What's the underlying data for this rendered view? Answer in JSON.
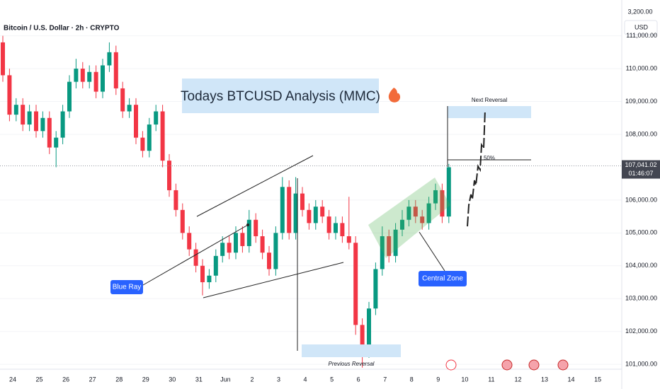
{
  "header": {
    "symbol": "Bitcoin / U.S. Dollar · 2h · CRYPTO",
    "currency": "USD",
    "top_label": "3,200.00"
  },
  "annotations": {
    "title": "Todays BTCUSD Analysis (MMC)",
    "blue_ray": "Blue Ray",
    "central_zone": "Central Zone",
    "next_reversal": "Next Reversal",
    "previous_reversal": "Previous Reversal",
    "fifty": "50%"
  },
  "chart_data": {
    "type": "candlestick",
    "up_color": "#089981",
    "down_color": "#f23645",
    "ylim": [
      100250,
      112090
    ],
    "yticks": [
      {
        "value": 101000,
        "label": "101,000.00"
      },
      {
        "value": 102000,
        "label": "102,000.00"
      },
      {
        "value": 103000,
        "label": "103,000.00"
      },
      {
        "value": 104000,
        "label": "104,000.00"
      },
      {
        "value": 105000,
        "label": "105,000.00"
      },
      {
        "value": 106000,
        "label": "106,000.00"
      },
      {
        "value": 108000,
        "label": "108,000.00"
      },
      {
        "value": 109000,
        "label": "109,000.00"
      },
      {
        "value": 110000,
        "label": "110,000.00"
      },
      {
        "value": 111000,
        "label": "111,000.00"
      }
    ],
    "last_price": {
      "value": 107041.02,
      "label": "107,041.02",
      "countdown": "01:46:07"
    },
    "categories": [
      "24",
      "25",
      "26",
      "27",
      "28",
      "29",
      "30",
      "31",
      "Jun",
      "2",
      "3",
      "4",
      "5",
      "6",
      "7",
      "8",
      "9",
      "10",
      "11",
      "12",
      "13",
      "14",
      "15"
    ],
    "candles": [
      {
        "o": 110800,
        "h": 111000,
        "l": 109600,
        "c": 109800
      },
      {
        "o": 109800,
        "h": 110000,
        "l": 108400,
        "c": 108600
      },
      {
        "o": 108600,
        "h": 109100,
        "l": 108400,
        "c": 108900
      },
      {
        "o": 108900,
        "h": 109100,
        "l": 108100,
        "c": 108300
      },
      {
        "o": 108300,
        "h": 108900,
        "l": 108100,
        "c": 108700
      },
      {
        "o": 108700,
        "h": 108900,
        "l": 107900,
        "c": 108100
      },
      {
        "o": 108100,
        "h": 108700,
        "l": 107900,
        "c": 108500
      },
      {
        "o": 108500,
        "h": 108700,
        "l": 107400,
        "c": 107600
      },
      {
        "o": 107600,
        "h": 108100,
        "l": 107000,
        "c": 107900
      },
      {
        "o": 107900,
        "h": 108900,
        "l": 107700,
        "c": 108700
      },
      {
        "o": 108700,
        "h": 109800,
        "l": 108500,
        "c": 109600
      },
      {
        "o": 109600,
        "h": 110300,
        "l": 109400,
        "c": 110000
      },
      {
        "o": 110000,
        "h": 110200,
        "l": 109400,
        "c": 109600
      },
      {
        "o": 109600,
        "h": 110100,
        "l": 109400,
        "c": 109900
      },
      {
        "o": 109900,
        "h": 110100,
        "l": 109100,
        "c": 109300
      },
      {
        "o": 109300,
        "h": 110300,
        "l": 109100,
        "c": 110100
      },
      {
        "o": 110100,
        "h": 110800,
        "l": 109900,
        "c": 110500
      },
      {
        "o": 110500,
        "h": 110700,
        "l": 109200,
        "c": 109400
      },
      {
        "o": 109400,
        "h": 109600,
        "l": 108500,
        "c": 108700
      },
      {
        "o": 108700,
        "h": 109100,
        "l": 108500,
        "c": 108900
      },
      {
        "o": 108900,
        "h": 109100,
        "l": 107700,
        "c": 107900
      },
      {
        "o": 107900,
        "h": 108100,
        "l": 107300,
        "c": 107500
      },
      {
        "o": 107500,
        "h": 108500,
        "l": 107300,
        "c": 108300
      },
      {
        "o": 108300,
        "h": 108900,
        "l": 108100,
        "c": 108700
      },
      {
        "o": 108700,
        "h": 108900,
        "l": 107000,
        "c": 107200
      },
      {
        "o": 107200,
        "h": 107400,
        "l": 106100,
        "c": 106300
      },
      {
        "o": 106300,
        "h": 106500,
        "l": 105500,
        "c": 105700
      },
      {
        "o": 105700,
        "h": 105900,
        "l": 104800,
        "c": 105000
      },
      {
        "o": 105000,
        "h": 105200,
        "l": 104300,
        "c": 104500
      },
      {
        "o": 104500,
        "h": 104700,
        "l": 103800,
        "c": 104000
      },
      {
        "o": 104000,
        "h": 104200,
        "l": 103100,
        "c": 103500
      },
      {
        "o": 103500,
        "h": 103900,
        "l": 103300,
        "c": 103700
      },
      {
        "o": 103700,
        "h": 104500,
        "l": 103500,
        "c": 104300
      },
      {
        "o": 104300,
        "h": 104900,
        "l": 104100,
        "c": 104700
      },
      {
        "o": 104700,
        "h": 104900,
        "l": 104200,
        "c": 104400
      },
      {
        "o": 104400,
        "h": 105200,
        "l": 104200,
        "c": 105000
      },
      {
        "o": 105000,
        "h": 105200,
        "l": 104400,
        "c": 104600
      },
      {
        "o": 104600,
        "h": 105700,
        "l": 104400,
        "c": 105400
      },
      {
        "o": 105400,
        "h": 105600,
        "l": 104700,
        "c": 104900
      },
      {
        "o": 104900,
        "h": 105100,
        "l": 104200,
        "c": 104400
      },
      {
        "o": 104400,
        "h": 104600,
        "l": 103700,
        "c": 103900
      },
      {
        "o": 103900,
        "h": 105200,
        "l": 103700,
        "c": 105000
      },
      {
        "o": 105000,
        "h": 106700,
        "l": 104800,
        "c": 106400
      },
      {
        "o": 106400,
        "h": 106600,
        "l": 104800,
        "c": 105000
      },
      {
        "o": 105000,
        "h": 106700,
        "l": 104800,
        "c": 106200
      },
      {
        "o": 106200,
        "h": 106400,
        "l": 105500,
        "c": 105700
      },
      {
        "o": 105700,
        "h": 105900,
        "l": 105100,
        "c": 105300
      },
      {
        "o": 105300,
        "h": 106000,
        "l": 105100,
        "c": 105800
      },
      {
        "o": 105800,
        "h": 106000,
        "l": 105300,
        "c": 105500
      },
      {
        "o": 105500,
        "h": 105700,
        "l": 104800,
        "c": 105000
      },
      {
        "o": 105000,
        "h": 105500,
        "l": 104800,
        "c": 105300
      },
      {
        "o": 105300,
        "h": 105500,
        "l": 104700,
        "c": 104900
      },
      {
        "o": 104900,
        "h": 106100,
        "l": 104500,
        "c": 104700
      },
      {
        "o": 104700,
        "h": 104900,
        "l": 101900,
        "c": 102200
      },
      {
        "o": 102200,
        "h": 102400,
        "l": 100900,
        "c": 101400
      },
      {
        "o": 101400,
        "h": 102900,
        "l": 101200,
        "c": 102700
      },
      {
        "o": 102700,
        "h": 104100,
        "l": 102500,
        "c": 103900
      },
      {
        "o": 103900,
        "h": 105200,
        "l": 103700,
        "c": 104900
      },
      {
        "o": 104900,
        "h": 105100,
        "l": 104100,
        "c": 104300
      },
      {
        "o": 104300,
        "h": 105300,
        "l": 104100,
        "c": 105100
      },
      {
        "o": 105100,
        "h": 105700,
        "l": 104900,
        "c": 105400
      },
      {
        "o": 105400,
        "h": 106000,
        "l": 105200,
        "c": 105800
      },
      {
        "o": 105800,
        "h": 106000,
        "l": 105300,
        "c": 105500
      },
      {
        "o": 105500,
        "h": 105700,
        "l": 105100,
        "c": 105300
      },
      {
        "o": 105300,
        "h": 106100,
        "l": 105100,
        "c": 105900
      },
      {
        "o": 105900,
        "h": 106500,
        "l": 105700,
        "c": 106300
      },
      {
        "o": 106300,
        "h": 106500,
        "l": 105300,
        "c": 105500
      },
      {
        "o": 105500,
        "h": 107100,
        "l": 105300,
        "c": 107000
      }
    ]
  }
}
